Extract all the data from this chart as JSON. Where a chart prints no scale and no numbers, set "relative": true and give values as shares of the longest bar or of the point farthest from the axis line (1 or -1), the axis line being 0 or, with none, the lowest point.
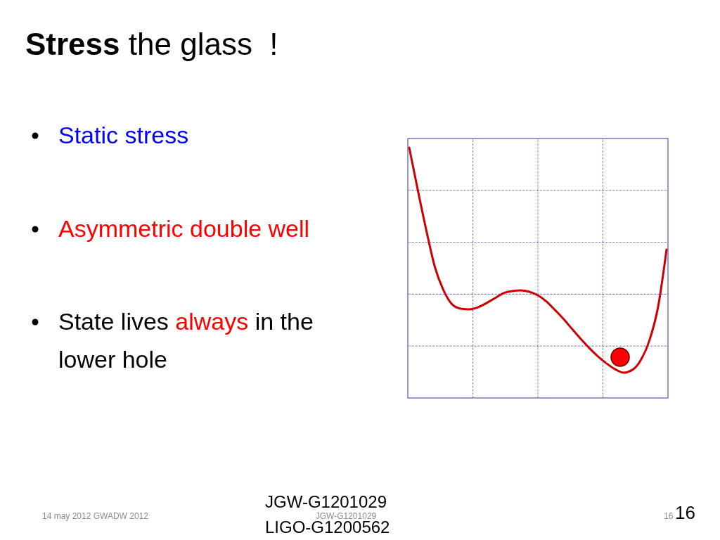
{
  "chart_data": {
    "type": "line",
    "title": "Stress the glass  !",
    "relative": true,
    "grid": true,
    "marker": "none",
    "line_style": "solid",
    "categories": [
      null,
      null,
      null,
      null,
      null,
      null,
      null,
      null,
      null,
      null,
      null,
      null,
      null,
      null,
      null,
      null,
      null,
      null,
      null,
      null,
      null,
      null,
      null,
      null,
      null,
      null,
      null,
      null,
      null,
      null,
      null
    ],
    "series": [
      {
        "color": "#cc0000",
        "values": [
          1.0,
          0.831,
          0.669,
          0.522,
          0.43,
          0.374,
          0.357,
          0.354,
          0.362,
          0.379,
          0.399,
          0.419,
          0.427,
          0.43,
          0.424,
          0.41,
          0.385,
          0.351,
          0.315,
          0.275,
          0.236,
          0.199,
          0.166,
          0.138,
          0.115,
          0.101,
          0.112,
          0.152,
          0.23,
          0.362,
          0.593
        ]
      }
    ],
    "annotations": [
      "Static stress",
      "Asymmetric double well",
      "State lives always in the lower hole",
      "14 may 2012 GWADW 2012",
      "JGW-G1201029",
      "LIGO-G1200562",
      "JGW-G1201029",
      "16",
      "16"
    ]
  }
}
